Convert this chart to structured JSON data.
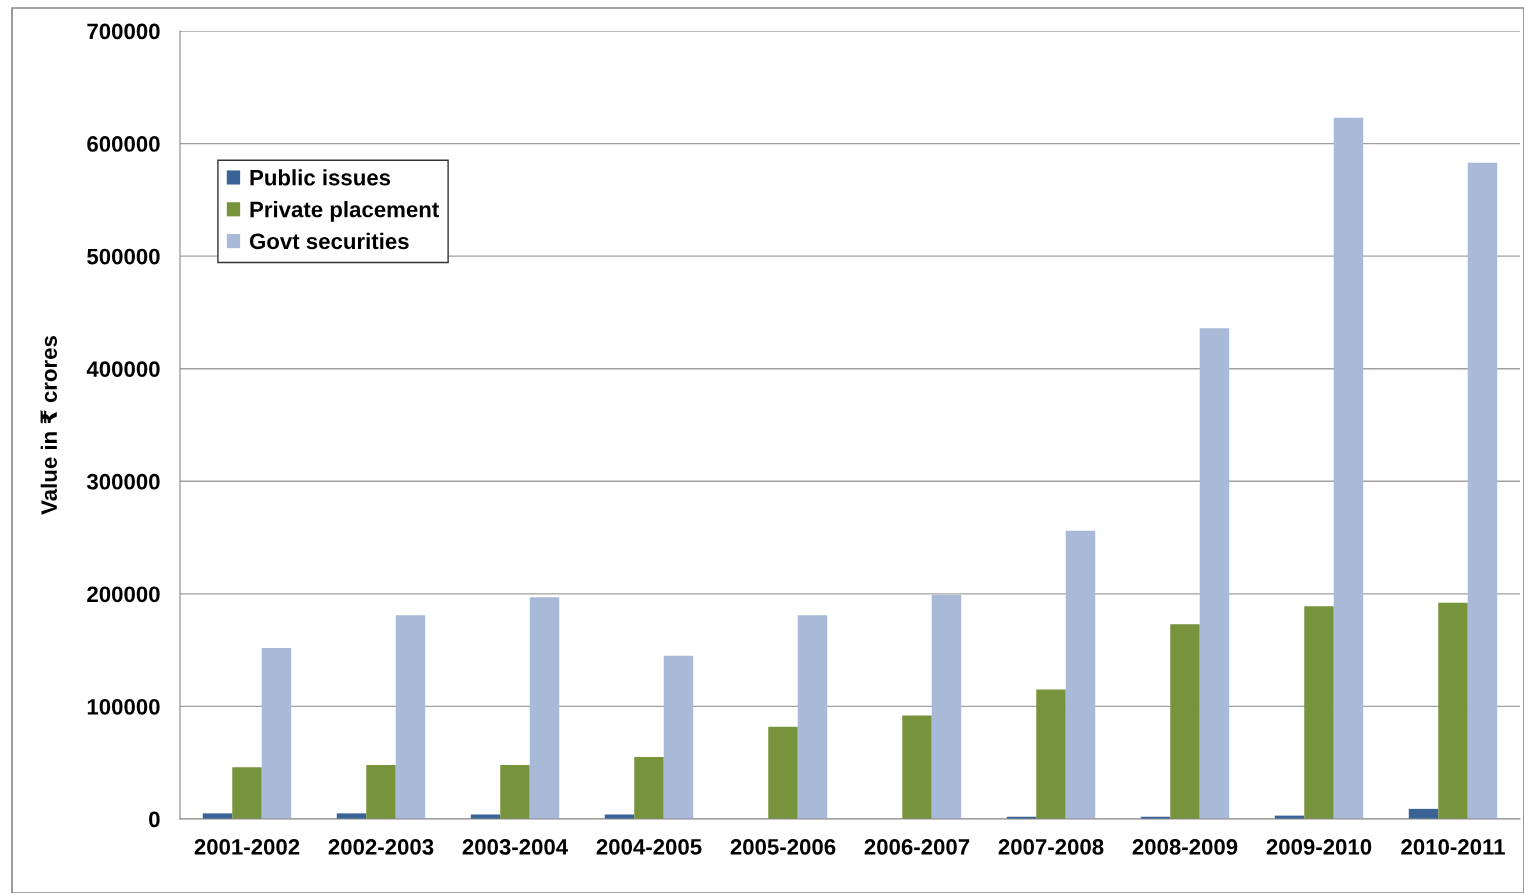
{
  "chart_data": {
    "type": "bar",
    "ylabel": "Value in ₹ crores",
    "categories": [
      "2001-2002",
      "2002-2003",
      "2003-2004",
      "2004-2005",
      "2005-2006",
      "2006-2007",
      "2007-2008",
      "2008-2009",
      "2009-2010",
      "2010-2011"
    ],
    "series": [
      {
        "name": "Public issues",
        "color": "#3a6397",
        "values": [
          5000,
          5000,
          4000,
          4000,
          0,
          0,
          2000,
          2000,
          3000,
          9000
        ]
      },
      {
        "name": "Private placement",
        "color": "#77933c",
        "values": [
          46000,
          48000,
          48000,
          55000,
          82000,
          92000,
          115000,
          173000,
          189000,
          192000
        ]
      },
      {
        "name": "Govt securities",
        "color": "#a9b9d8",
        "values": [
          152000,
          181000,
          197000,
          145000,
          181000,
          199000,
          256000,
          436000,
          623000,
          583000
        ]
      }
    ],
    "ylim": [
      0,
      700000
    ],
    "yticks": [
      0,
      100000,
      200000,
      300000,
      400000,
      500000,
      600000,
      700000
    ],
    "grid": "y",
    "legend": "top left"
  }
}
